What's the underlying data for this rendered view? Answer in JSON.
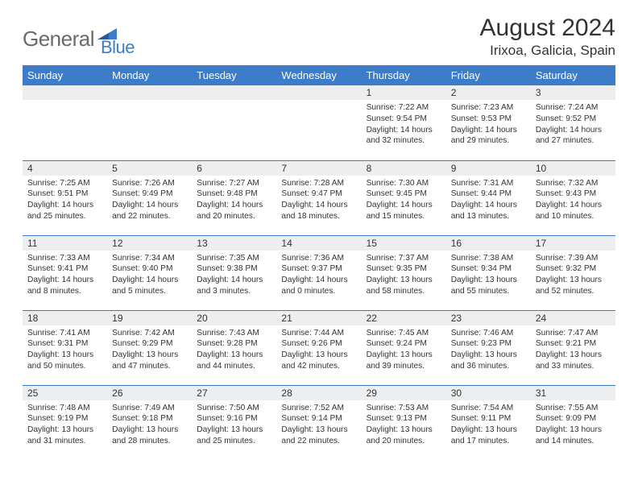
{
  "logo": {
    "text1": "General",
    "text2": "Blue"
  },
  "title": "August 2024",
  "location": "Irixoa, Galicia, Spain",
  "colors": {
    "brand_blue": "#3d7cc9",
    "header_text": "#ffffff",
    "day_header_bg": "#eceef0",
    "rule": "#3d7cc9",
    "text": "#333333",
    "logo_grey": "#6a6a6a"
  },
  "weekdays": [
    "Sunday",
    "Monday",
    "Tuesday",
    "Wednesday",
    "Thursday",
    "Friday",
    "Saturday"
  ],
  "weeks": [
    [
      {
        "n": "",
        "sr": "",
        "ss": "",
        "dl": ""
      },
      {
        "n": "",
        "sr": "",
        "ss": "",
        "dl": ""
      },
      {
        "n": "",
        "sr": "",
        "ss": "",
        "dl": ""
      },
      {
        "n": "",
        "sr": "",
        "ss": "",
        "dl": ""
      },
      {
        "n": "1",
        "sr": "Sunrise: 7:22 AM",
        "ss": "Sunset: 9:54 PM",
        "dl": "Daylight: 14 hours and 32 minutes."
      },
      {
        "n": "2",
        "sr": "Sunrise: 7:23 AM",
        "ss": "Sunset: 9:53 PM",
        "dl": "Daylight: 14 hours and 29 minutes."
      },
      {
        "n": "3",
        "sr": "Sunrise: 7:24 AM",
        "ss": "Sunset: 9:52 PM",
        "dl": "Daylight: 14 hours and 27 minutes."
      }
    ],
    [
      {
        "n": "4",
        "sr": "Sunrise: 7:25 AM",
        "ss": "Sunset: 9:51 PM",
        "dl": "Daylight: 14 hours and 25 minutes."
      },
      {
        "n": "5",
        "sr": "Sunrise: 7:26 AM",
        "ss": "Sunset: 9:49 PM",
        "dl": "Daylight: 14 hours and 22 minutes."
      },
      {
        "n": "6",
        "sr": "Sunrise: 7:27 AM",
        "ss": "Sunset: 9:48 PM",
        "dl": "Daylight: 14 hours and 20 minutes."
      },
      {
        "n": "7",
        "sr": "Sunrise: 7:28 AM",
        "ss": "Sunset: 9:47 PM",
        "dl": "Daylight: 14 hours and 18 minutes."
      },
      {
        "n": "8",
        "sr": "Sunrise: 7:30 AM",
        "ss": "Sunset: 9:45 PM",
        "dl": "Daylight: 14 hours and 15 minutes."
      },
      {
        "n": "9",
        "sr": "Sunrise: 7:31 AM",
        "ss": "Sunset: 9:44 PM",
        "dl": "Daylight: 14 hours and 13 minutes."
      },
      {
        "n": "10",
        "sr": "Sunrise: 7:32 AM",
        "ss": "Sunset: 9:43 PM",
        "dl": "Daylight: 14 hours and 10 minutes."
      }
    ],
    [
      {
        "n": "11",
        "sr": "Sunrise: 7:33 AM",
        "ss": "Sunset: 9:41 PM",
        "dl": "Daylight: 14 hours and 8 minutes."
      },
      {
        "n": "12",
        "sr": "Sunrise: 7:34 AM",
        "ss": "Sunset: 9:40 PM",
        "dl": "Daylight: 14 hours and 5 minutes."
      },
      {
        "n": "13",
        "sr": "Sunrise: 7:35 AM",
        "ss": "Sunset: 9:38 PM",
        "dl": "Daylight: 14 hours and 3 minutes."
      },
      {
        "n": "14",
        "sr": "Sunrise: 7:36 AM",
        "ss": "Sunset: 9:37 PM",
        "dl": "Daylight: 14 hours and 0 minutes."
      },
      {
        "n": "15",
        "sr": "Sunrise: 7:37 AM",
        "ss": "Sunset: 9:35 PM",
        "dl": "Daylight: 13 hours and 58 minutes."
      },
      {
        "n": "16",
        "sr": "Sunrise: 7:38 AM",
        "ss": "Sunset: 9:34 PM",
        "dl": "Daylight: 13 hours and 55 minutes."
      },
      {
        "n": "17",
        "sr": "Sunrise: 7:39 AM",
        "ss": "Sunset: 9:32 PM",
        "dl": "Daylight: 13 hours and 52 minutes."
      }
    ],
    [
      {
        "n": "18",
        "sr": "Sunrise: 7:41 AM",
        "ss": "Sunset: 9:31 PM",
        "dl": "Daylight: 13 hours and 50 minutes."
      },
      {
        "n": "19",
        "sr": "Sunrise: 7:42 AM",
        "ss": "Sunset: 9:29 PM",
        "dl": "Daylight: 13 hours and 47 minutes."
      },
      {
        "n": "20",
        "sr": "Sunrise: 7:43 AM",
        "ss": "Sunset: 9:28 PM",
        "dl": "Daylight: 13 hours and 44 minutes."
      },
      {
        "n": "21",
        "sr": "Sunrise: 7:44 AM",
        "ss": "Sunset: 9:26 PM",
        "dl": "Daylight: 13 hours and 42 minutes."
      },
      {
        "n": "22",
        "sr": "Sunrise: 7:45 AM",
        "ss": "Sunset: 9:24 PM",
        "dl": "Daylight: 13 hours and 39 minutes."
      },
      {
        "n": "23",
        "sr": "Sunrise: 7:46 AM",
        "ss": "Sunset: 9:23 PM",
        "dl": "Daylight: 13 hours and 36 minutes."
      },
      {
        "n": "24",
        "sr": "Sunrise: 7:47 AM",
        "ss": "Sunset: 9:21 PM",
        "dl": "Daylight: 13 hours and 33 minutes."
      }
    ],
    [
      {
        "n": "25",
        "sr": "Sunrise: 7:48 AM",
        "ss": "Sunset: 9:19 PM",
        "dl": "Daylight: 13 hours and 31 minutes."
      },
      {
        "n": "26",
        "sr": "Sunrise: 7:49 AM",
        "ss": "Sunset: 9:18 PM",
        "dl": "Daylight: 13 hours and 28 minutes."
      },
      {
        "n": "27",
        "sr": "Sunrise: 7:50 AM",
        "ss": "Sunset: 9:16 PM",
        "dl": "Daylight: 13 hours and 25 minutes."
      },
      {
        "n": "28",
        "sr": "Sunrise: 7:52 AM",
        "ss": "Sunset: 9:14 PM",
        "dl": "Daylight: 13 hours and 22 minutes."
      },
      {
        "n": "29",
        "sr": "Sunrise: 7:53 AM",
        "ss": "Sunset: 9:13 PM",
        "dl": "Daylight: 13 hours and 20 minutes."
      },
      {
        "n": "30",
        "sr": "Sunrise: 7:54 AM",
        "ss": "Sunset: 9:11 PM",
        "dl": "Daylight: 13 hours and 17 minutes."
      },
      {
        "n": "31",
        "sr": "Sunrise: 7:55 AM",
        "ss": "Sunset: 9:09 PM",
        "dl": "Daylight: 13 hours and 14 minutes."
      }
    ]
  ]
}
